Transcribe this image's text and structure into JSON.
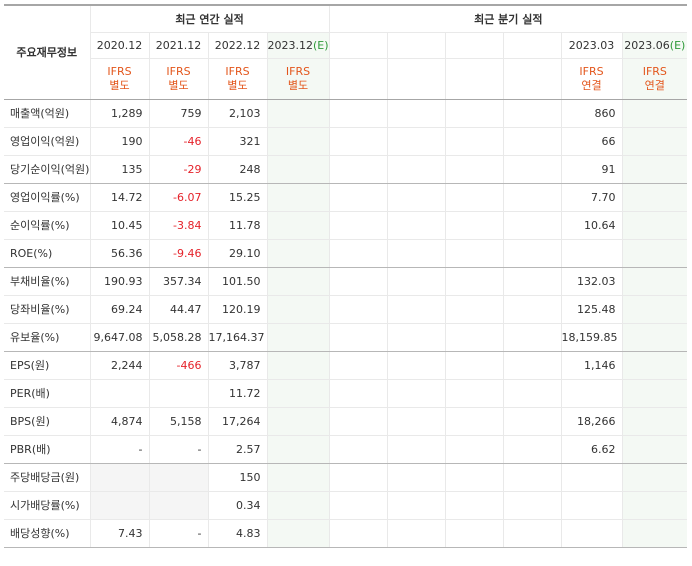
{
  "header": {
    "label_head": "주요재무정보",
    "annual_title": "최근 연간 실적",
    "quarter_title": "최근 분기 실적"
  },
  "annual_periods": [
    {
      "date": "2020.12",
      "type1": "IFRS",
      "type2": "별도",
      "estimate": ""
    },
    {
      "date": "2021.12",
      "type1": "IFRS",
      "type2": "별도",
      "estimate": ""
    },
    {
      "date": "2022.12",
      "type1": "IFRS",
      "type2": "별도",
      "estimate": ""
    },
    {
      "date": "2023.12",
      "type1": "IFRS",
      "type2": "별도",
      "estimate": "(E)"
    }
  ],
  "quarter_periods": [
    {
      "date": "",
      "type1": "",
      "type2": "",
      "estimate": ""
    },
    {
      "date": "",
      "type1": "",
      "type2": "",
      "estimate": ""
    },
    {
      "date": "",
      "type1": "",
      "type2": "",
      "estimate": ""
    },
    {
      "date": "",
      "type1": "",
      "type2": "",
      "estimate": ""
    },
    {
      "date": "2023.03",
      "type1": "IFRS",
      "type2": "연결",
      "estimate": ""
    },
    {
      "date": "2023.06",
      "type1": "IFRS",
      "type2": "연결",
      "estimate": "(E)"
    }
  ],
  "rows": [
    {
      "label": "매출액(억원)",
      "annual": [
        "1,289",
        "759",
        "2,103",
        ""
      ],
      "quarter": [
        "",
        "",
        "",
        "",
        "860",
        ""
      ]
    },
    {
      "label": "영업이익(억원)",
      "annual": [
        "190",
        "-46",
        "321",
        ""
      ],
      "quarter": [
        "",
        "",
        "",
        "",
        "66",
        ""
      ]
    },
    {
      "label": "당기순이익(억원)",
      "annual": [
        "135",
        "-29",
        "248",
        ""
      ],
      "quarter": [
        "",
        "",
        "",
        "",
        "91",
        ""
      ]
    },
    {
      "label": "영업이익률(%)",
      "annual": [
        "14.72",
        "-6.07",
        "15.25",
        ""
      ],
      "quarter": [
        "",
        "",
        "",
        "",
        "7.70",
        ""
      ]
    },
    {
      "label": "순이익률(%)",
      "annual": [
        "10.45",
        "-3.84",
        "11.78",
        ""
      ],
      "quarter": [
        "",
        "",
        "",
        "",
        "10.64",
        ""
      ]
    },
    {
      "label": "ROE(%)",
      "annual": [
        "56.36",
        "-9.46",
        "29.10",
        ""
      ],
      "quarter": [
        "",
        "",
        "",
        "",
        "",
        ""
      ]
    },
    {
      "label": "부채비율(%)",
      "annual": [
        "190.93",
        "357.34",
        "101.50",
        ""
      ],
      "quarter": [
        "",
        "",
        "",
        "",
        "132.03",
        ""
      ]
    },
    {
      "label": "당좌비율(%)",
      "annual": [
        "69.24",
        "44.47",
        "120.19",
        ""
      ],
      "quarter": [
        "",
        "",
        "",
        "",
        "125.48",
        ""
      ]
    },
    {
      "label": "유보율(%)",
      "annual": [
        "9,647.08",
        "5,058.28",
        "17,164.37",
        ""
      ],
      "quarter": [
        "",
        "",
        "",
        "",
        "18,159.85",
        ""
      ]
    },
    {
      "label": "EPS(원)",
      "annual": [
        "2,244",
        "-466",
        "3,787",
        ""
      ],
      "quarter": [
        "",
        "",
        "",
        "",
        "1,146",
        ""
      ]
    },
    {
      "label": "PER(배)",
      "annual": [
        "",
        "",
        "11.72",
        ""
      ],
      "quarter": [
        "",
        "",
        "",
        "",
        "",
        ""
      ]
    },
    {
      "label": "BPS(원)",
      "annual": [
        "4,874",
        "5,158",
        "17,264",
        ""
      ],
      "quarter": [
        "",
        "",
        "",
        "",
        "18,266",
        ""
      ]
    },
    {
      "label": "PBR(배)",
      "annual": [
        "-",
        "-",
        "2.57",
        ""
      ],
      "quarter": [
        "",
        "",
        "",
        "",
        "6.62",
        ""
      ]
    },
    {
      "label": "주당배당금(원)",
      "annual": [
        "",
        "",
        "150",
        ""
      ],
      "quarter": [
        "",
        "",
        "",
        "",
        "",
        ""
      ]
    },
    {
      "label": "시가배당률(%)",
      "annual": [
        "",
        "",
        "0.34",
        ""
      ],
      "quarter": [
        "",
        "",
        "",
        "",
        "",
        ""
      ]
    },
    {
      "label": "배당성향(%)",
      "annual": [
        "7.43",
        "-",
        "4.83",
        ""
      ],
      "quarter": [
        "",
        "",
        "",
        "",
        "",
        ""
      ]
    }
  ],
  "colors": {
    "ifrs_type": "#e3561c",
    "negative": "#e5222a",
    "estimate": "#2f9a3a",
    "estimate_bg": "#f4f9f4",
    "empty_bg": "#f5f5f5"
  }
}
